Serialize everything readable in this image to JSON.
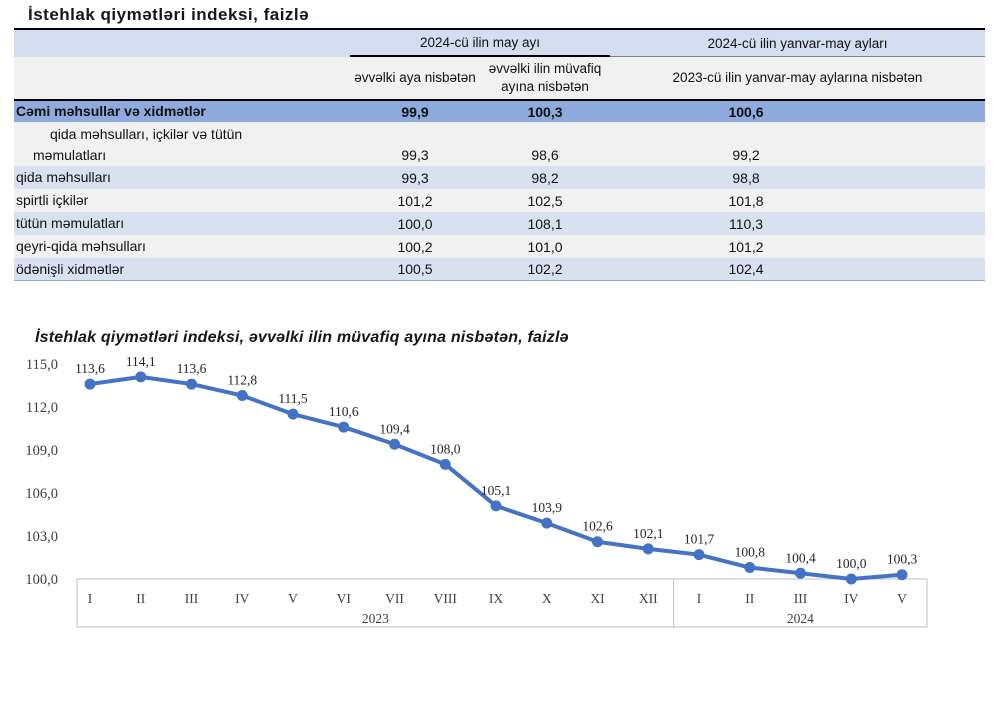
{
  "page": {
    "table_title": "İstehlak qiymətləri indeksi, faizlə",
    "chart_title": "İstehlak qiymətləri indeksi, əvvəlki ilin müvafiq ayına nisbətən, faizlə"
  },
  "colors": {
    "line_blue": "#4472C4",
    "total_row_blue": "#8faadc",
    "light_blue_row": "#d9e1f1",
    "gray_row": "#f1f1f1",
    "axis_box_border": "#bfbfbf",
    "axis_text": "#404040"
  },
  "table": {
    "column_group_1": "2024-cü ilin may ayı",
    "column_group_2": "2024-cü ilin yanvar-may ayları",
    "sub_header_1": "əvvəlki aya nisbətən",
    "sub_header_2": "əvvəlki ilin müvafiq ayına nisbətən",
    "sub_header_3": "2023-cü ilin yanvar-may aylarına nisbətən",
    "rows": [
      {
        "label": "Cəmi məhsullar və xidmətlər",
        "values": [
          "99,9",
          "100,3",
          "100,6"
        ],
        "style": "total",
        "indent": 0
      },
      {
        "label": "qida məhsulları, içkilər və tütün",
        "label2": "məmulatları",
        "values": [
          "99,3",
          "98,6",
          "99,2"
        ],
        "style": "gray",
        "indent": 1,
        "twoline": true
      },
      {
        "label": "qida məhsulları",
        "values": [
          "99,3",
          "98,2",
          "98,8"
        ],
        "style": "blue",
        "indent": 2
      },
      {
        "label": "spirtli içkilər",
        "values": [
          "101,2",
          "102,5",
          "101,8"
        ],
        "style": "gray",
        "indent": 2
      },
      {
        "label": "tütün məmulatları",
        "values": [
          "100,0",
          "108,1",
          "110,3"
        ],
        "style": "blue",
        "indent": 2
      },
      {
        "label": "qeyri-qida məhsulları",
        "values": [
          "100,2",
          "101,0",
          "101,2"
        ],
        "style": "gray",
        "indent": 1
      },
      {
        "label": "ödənişli xidmətlər",
        "values": [
          "100,5",
          "102,2",
          "102,4"
        ],
        "style": "blue",
        "indent": 1
      }
    ]
  },
  "chart_data": {
    "type": "line",
    "title": "İstehlak qiymətləri indeksi, əvvəlki ilin müvafiq ayına nisbətən, faizlə",
    "x_groups": [
      {
        "year": "2023",
        "months": [
          "I",
          "II",
          "III",
          "IV",
          "V",
          "VI",
          "VII",
          "VIII",
          "IX",
          "X",
          "XI",
          "XII"
        ]
      },
      {
        "year": "2024",
        "months": [
          "I",
          "II",
          "III",
          "IV",
          "V"
        ]
      }
    ],
    "values": [
      113.6,
      114.1,
      113.6,
      112.8,
      111.5,
      110.6,
      109.4,
      108.0,
      105.1,
      103.9,
      102.6,
      102.1,
      101.7,
      100.8,
      100.4,
      100.0,
      100.3
    ],
    "y_ticks": [
      115.0,
      112.0,
      109.0,
      106.0,
      103.0,
      100.0
    ],
    "ylim": [
      100.0,
      115.0
    ],
    "decimal_separator": ",",
    "grid": false,
    "legend": false,
    "xlabel": "",
    "ylabel": ""
  }
}
